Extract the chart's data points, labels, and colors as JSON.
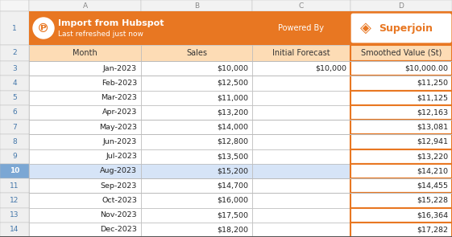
{
  "header_bg": "#E87722",
  "col_header_bg": "#FDDCB5",
  "row_bg": "#FFFFFF",
  "highlight_row_num": 10,
  "highlight_row_bg": "#D6E4F7",
  "highlight_num_bg": "#7BA7D4",
  "col_d_border": "#E87722",
  "grid_color": "#BBBBBB",
  "dark_grid": "#888888",
  "row_num_bg": "#EFEFEF",
  "row_num_color": "#4477AA",
  "col_letter_bg": "#F2F2F2",
  "col_letter_color": "#888888",
  "title_line1": "Import from Hubspot",
  "title_line2": "Last refreshed just now",
  "powered_by": "Powered By",
  "brand": "Superjoin",
  "table_headers": [
    "Month",
    "Sales",
    "Initial Forecast",
    "Smoothed Value (St)"
  ],
  "rows": [
    [
      "Jan-2023",
      "$10,000",
      "$10,000",
      "$10,000.00"
    ],
    [
      "Feb-2023",
      "$12,500",
      "",
      "$11,250"
    ],
    [
      "Mar-2023",
      "$11,000",
      "",
      "$11,125"
    ],
    [
      "Apr-2023",
      "$13,200",
      "",
      "$12,163"
    ],
    [
      "May-2023",
      "$14,000",
      "",
      "$13,081"
    ],
    [
      "Jun-2023",
      "$12,800",
      "",
      "$12,941"
    ],
    [
      "Jul-2023",
      "$13,500",
      "",
      "$13,220"
    ],
    [
      "Aug-2023",
      "$15,200",
      "",
      "$14,210"
    ],
    [
      "Sep-2023",
      "$14,700",
      "",
      "$14,455"
    ],
    [
      "Oct-2023",
      "$16,000",
      "",
      "$15,228"
    ],
    [
      "Nov-2023",
      "$17,500",
      "",
      "$16,364"
    ],
    [
      "Dec-2023",
      "$18,200",
      "",
      "$17,282"
    ]
  ],
  "row_numbers": [
    3,
    4,
    5,
    6,
    7,
    8,
    9,
    10,
    11,
    12,
    13,
    14
  ],
  "figsize": [
    5.61,
    2.95
  ],
  "dpi": 100
}
